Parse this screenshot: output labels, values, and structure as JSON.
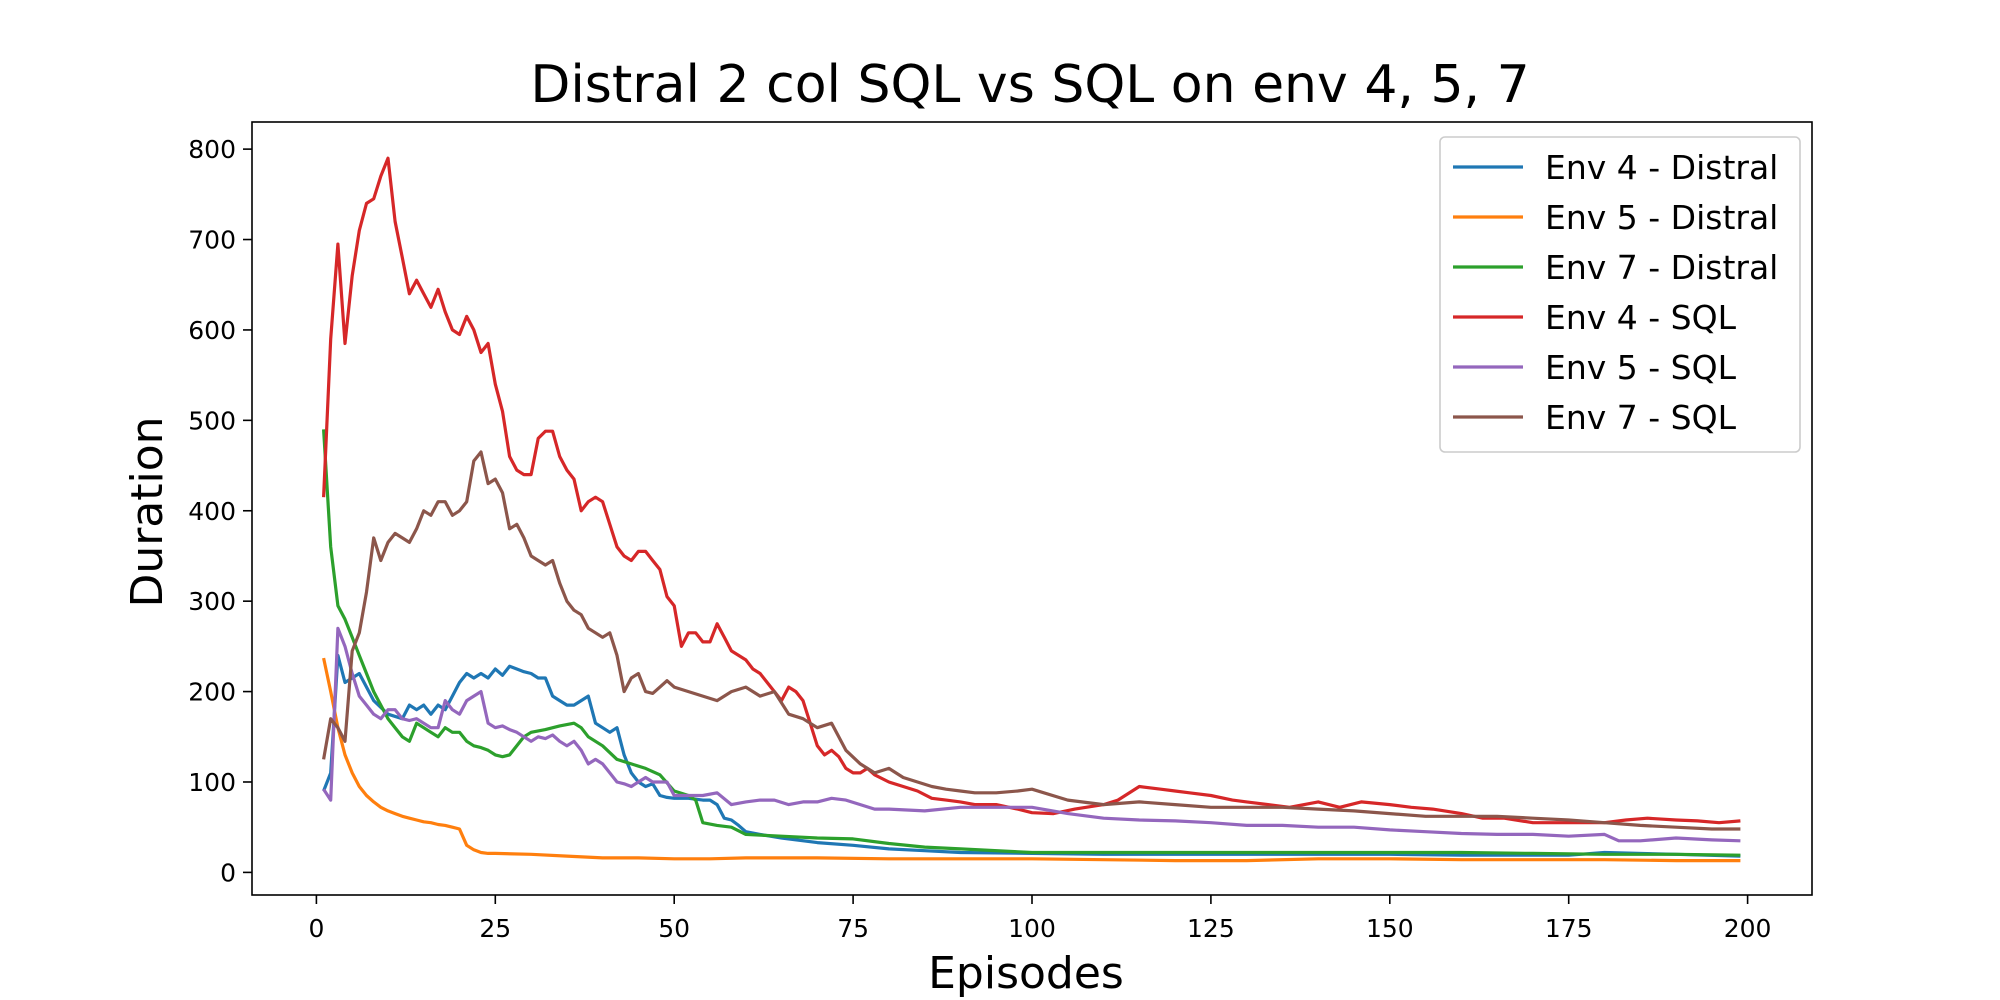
{
  "chart_data": {
    "type": "line",
    "title": "Distral 2 col SQL vs SQL on env 4, 5, 7",
    "xlabel": "Episodes",
    "ylabel": "Duration",
    "xlim": [
      -9,
      209
    ],
    "ylim": [
      -25,
      830
    ],
    "xticks": [
      0,
      25,
      50,
      75,
      100,
      125,
      150,
      175,
      200
    ],
    "yticks": [
      0,
      100,
      200,
      300,
      400,
      500,
      600,
      700,
      800
    ],
    "grid": false,
    "legend_position": "top-right",
    "series": [
      {
        "name": "Env 4 - Distral",
        "color": "#1f77b4",
        "x": [
          1,
          2,
          3,
          4,
          6,
          8,
          10,
          12,
          13,
          14,
          15,
          16,
          17,
          18,
          19,
          20,
          21,
          22,
          23,
          24,
          25,
          26,
          27,
          28,
          29,
          30,
          31,
          32,
          33,
          34,
          35,
          36,
          37,
          38,
          39,
          40,
          41,
          42,
          43,
          44,
          45,
          46,
          47,
          48,
          49,
          50,
          52,
          54,
          55,
          56,
          57,
          58,
          59,
          60,
          62,
          65,
          70,
          75,
          80,
          85,
          90,
          100,
          110,
          120,
          130,
          140,
          150,
          160,
          170,
          175,
          180,
          190,
          199
        ],
        "y": [
          90,
          110,
          240,
          210,
          220,
          190,
          175,
          170,
          185,
          180,
          185,
          175,
          185,
          180,
          195,
          210,
          220,
          215,
          220,
          215,
          225,
          218,
          228,
          225,
          222,
          220,
          215,
          215,
          195,
          190,
          185,
          185,
          190,
          195,
          165,
          160,
          155,
          160,
          130,
          110,
          100,
          95,
          98,
          85,
          83,
          82,
          82,
          80,
          80,
          75,
          60,
          58,
          52,
          45,
          42,
          38,
          33,
          30,
          26,
          24,
          22,
          21,
          20,
          20,
          20,
          20,
          20,
          19,
          19,
          19,
          22,
          20,
          18
        ]
      },
      {
        "name": "Env 5 - Distral",
        "color": "#ff7f0e",
        "x": [
          1,
          2,
          3,
          4,
          5,
          6,
          7,
          8,
          9,
          10,
          11,
          12,
          13,
          14,
          15,
          16,
          17,
          18,
          19,
          20,
          21,
          22,
          23,
          24,
          25,
          30,
          35,
          40,
          45,
          50,
          55,
          60,
          70,
          80,
          90,
          100,
          110,
          120,
          130,
          140,
          150,
          160,
          170,
          180,
          190,
          199
        ],
        "y": [
          237,
          200,
          160,
          130,
          110,
          95,
          85,
          78,
          72,
          68,
          65,
          62,
          60,
          58,
          56,
          55,
          53,
          52,
          50,
          48,
          30,
          25,
          22,
          21,
          21,
          20,
          18,
          16,
          16,
          15,
          15,
          16,
          16,
          15,
          15,
          15,
          14,
          13,
          13,
          15,
          15,
          14,
          14,
          14,
          13,
          13
        ]
      },
      {
        "name": "Env 7 - Distral",
        "color": "#2ca02c",
        "x": [
          1,
          2,
          3,
          4,
          5,
          6,
          7,
          8,
          9,
          10,
          11,
          12,
          13,
          14,
          15,
          16,
          17,
          18,
          19,
          20,
          21,
          22,
          23,
          24,
          25,
          26,
          27,
          28,
          29,
          30,
          32,
          34,
          36,
          37,
          38,
          40,
          42,
          44,
          46,
          48,
          50,
          52,
          53,
          54,
          56,
          58,
          60,
          65,
          70,
          75,
          80,
          85,
          90,
          100,
          110,
          120,
          130,
          140,
          150,
          160,
          170,
          180,
          190,
          199
        ],
        "y": [
          490,
          360,
          295,
          280,
          260,
          240,
          220,
          200,
          185,
          170,
          160,
          150,
          145,
          165,
          160,
          155,
          150,
          160,
          155,
          155,
          145,
          140,
          138,
          135,
          130,
          128,
          130,
          140,
          150,
          155,
          158,
          162,
          165,
          160,
          150,
          140,
          125,
          120,
          115,
          108,
          90,
          85,
          80,
          55,
          52,
          50,
          42,
          40,
          38,
          37,
          32,
          28,
          26,
          22,
          22,
          22,
          22,
          22,
          22,
          22,
          21,
          20,
          20,
          19
        ]
      },
      {
        "name": "Env 4 - SQL",
        "color": "#d62728",
        "x": [
          1,
          2,
          3,
          4,
          5,
          6,
          7,
          8,
          9,
          10,
          11,
          12,
          13,
          14,
          15,
          16,
          17,
          18,
          19,
          20,
          21,
          22,
          23,
          24,
          25,
          26,
          27,
          28,
          29,
          30,
          31,
          32,
          33,
          34,
          35,
          36,
          37,
          38,
          39,
          40,
          41,
          42,
          43,
          44,
          45,
          46,
          47,
          48,
          49,
          50,
          51,
          52,
          53,
          54,
          55,
          56,
          57,
          58,
          59,
          60,
          61,
          62,
          63,
          64,
          65,
          66,
          67,
          68,
          69,
          70,
          71,
          72,
          73,
          74,
          75,
          76,
          77,
          78,
          80,
          82,
          84,
          86,
          88,
          90,
          92,
          95,
          98,
          100,
          103,
          106,
          110,
          112,
          115,
          118,
          120,
          122,
          125,
          128,
          130,
          133,
          136,
          140,
          143,
          146,
          150,
          153,
          156,
          160,
          163,
          166,
          170,
          173,
          176,
          180,
          183,
          186,
          190,
          193,
          196,
          199
        ],
        "y": [
          415,
          590,
          695,
          585,
          660,
          710,
          740,
          745,
          770,
          790,
          720,
          680,
          640,
          655,
          640,
          625,
          645,
          620,
          600,
          595,
          615,
          600,
          575,
          585,
          540,
          510,
          460,
          445,
          440,
          440,
          480,
          488,
          488,
          460,
          445,
          435,
          400,
          410,
          415,
          410,
          385,
          360,
          350,
          345,
          355,
          355,
          345,
          335,
          305,
          295,
          250,
          265,
          265,
          255,
          255,
          275,
          260,
          245,
          240,
          235,
          225,
          220,
          210,
          200,
          190,
          205,
          200,
          190,
          165,
          140,
          130,
          135,
          128,
          115,
          110,
          110,
          115,
          108,
          100,
          95,
          90,
          82,
          80,
          78,
          75,
          75,
          70,
          66,
          65,
          70,
          75,
          80,
          95,
          92,
          90,
          88,
          85,
          80,
          78,
          75,
          72,
          78,
          72,
          78,
          75,
          72,
          70,
          65,
          60,
          60,
          55,
          55,
          55,
          55,
          58,
          60,
          58,
          57,
          55,
          57
        ]
      },
      {
        "name": "Env 5 - SQL",
        "color": "#9467bd",
        "x": [
          1,
          2,
          3,
          4,
          5,
          6,
          7,
          8,
          9,
          10,
          11,
          12,
          13,
          14,
          15,
          16,
          17,
          18,
          19,
          20,
          21,
          22,
          23,
          24,
          25,
          26,
          27,
          28,
          29,
          30,
          31,
          32,
          33,
          34,
          35,
          36,
          37,
          38,
          39,
          40,
          41,
          42,
          43,
          44,
          45,
          46,
          47,
          48,
          49,
          50,
          52,
          54,
          56,
          58,
          60,
          62,
          64,
          66,
          68,
          70,
          72,
          74,
          76,
          78,
          80,
          85,
          90,
          95,
          100,
          105,
          110,
          115,
          120,
          125,
          130,
          135,
          140,
          145,
          150,
          155,
          160,
          165,
          170,
          175,
          180,
          182,
          185,
          190,
          195,
          199
        ],
        "y": [
          92,
          80,
          270,
          250,
          220,
          195,
          185,
          175,
          170,
          180,
          180,
          170,
          168,
          170,
          165,
          160,
          160,
          190,
          180,
          175,
          190,
          195,
          200,
          165,
          160,
          162,
          158,
          155,
          150,
          145,
          150,
          148,
          152,
          145,
          140,
          145,
          135,
          120,
          125,
          120,
          110,
          100,
          98,
          95,
          100,
          105,
          100,
          100,
          100,
          85,
          85,
          85,
          88,
          75,
          78,
          80,
          80,
          75,
          78,
          78,
          82,
          80,
          75,
          70,
          70,
          68,
          72,
          72,
          72,
          65,
          60,
          58,
          57,
          55,
          52,
          52,
          50,
          50,
          47,
          45,
          43,
          42,
          42,
          40,
          42,
          35,
          35,
          38,
          36,
          35
        ]
      },
      {
        "name": "Env 7 - SQL",
        "color": "#8c564b",
        "x": [
          1,
          2,
          3,
          4,
          5,
          6,
          7,
          8,
          9,
          10,
          11,
          12,
          13,
          14,
          15,
          16,
          17,
          18,
          19,
          20,
          21,
          22,
          23,
          24,
          25,
          26,
          27,
          28,
          29,
          30,
          31,
          32,
          33,
          34,
          35,
          36,
          37,
          38,
          39,
          40,
          41,
          42,
          43,
          44,
          45,
          46,
          47,
          48,
          49,
          50,
          52,
          54,
          56,
          58,
          60,
          62,
          64,
          66,
          68,
          70,
          72,
          74,
          76,
          78,
          80,
          82,
          84,
          86,
          88,
          90,
          92,
          95,
          98,
          100,
          105,
          110,
          115,
          120,
          125,
          130,
          135,
          140,
          145,
          150,
          155,
          160,
          165,
          170,
          175,
          180,
          185,
          190,
          195,
          199
        ],
        "y": [
          125,
          170,
          160,
          145,
          245,
          265,
          310,
          370,
          345,
          365,
          375,
          370,
          365,
          380,
          400,
          395,
          410,
          410,
          395,
          400,
          410,
          455,
          465,
          430,
          435,
          420,
          380,
          385,
          370,
          350,
          345,
          340,
          345,
          320,
          300,
          290,
          285,
          270,
          265,
          260,
          265,
          240,
          200,
          215,
          220,
          200,
          198,
          205,
          212,
          205,
          200,
          195,
          190,
          200,
          205,
          195,
          200,
          175,
          170,
          160,
          165,
          135,
          120,
          110,
          115,
          105,
          100,
          95,
          92,
          90,
          88,
          88,
          90,
          92,
          80,
          75,
          78,
          75,
          72,
          72,
          72,
          70,
          68,
          65,
          62,
          62,
          62,
          60,
          58,
          55,
          52,
          50,
          48,
          48
        ]
      }
    ]
  }
}
